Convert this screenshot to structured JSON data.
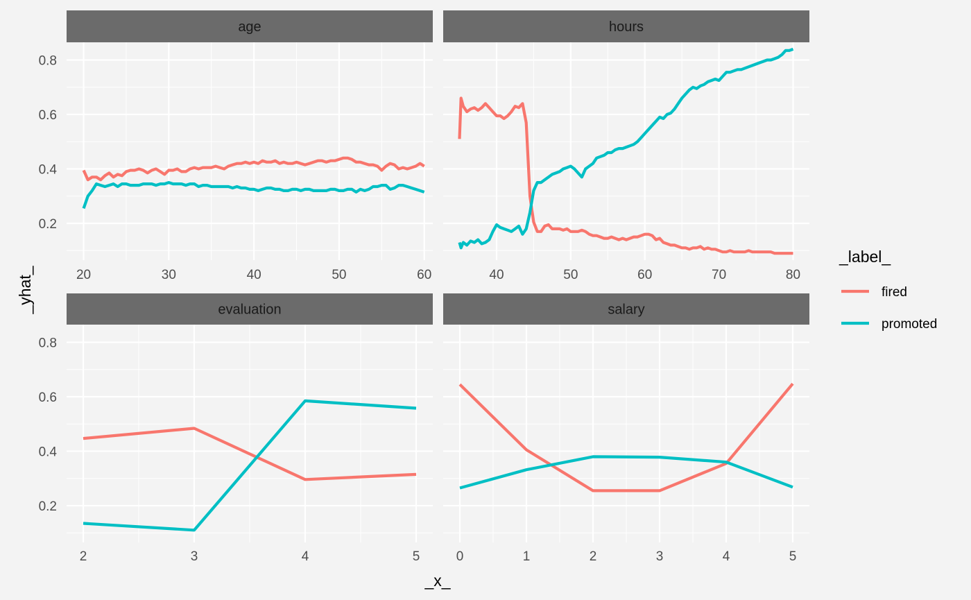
{
  "chart_data": {
    "type": "line",
    "xlabel": "_x_",
    "ylabel": "_yhat_",
    "ylim": [
      0.065,
      0.865
    ],
    "yticks": [
      0.2,
      0.4,
      0.6,
      0.8
    ],
    "grid": true,
    "shared_y": true,
    "legend": {
      "title": "_label_",
      "position": "right",
      "entries": [
        {
          "name": "fired",
          "color": "#F8766D"
        },
        {
          "name": "promoted",
          "color": "#00BFC4"
        }
      ]
    },
    "panels": [
      {
        "title": "age",
        "xlim": [
          18,
          61
        ],
        "xticks": [
          20,
          30,
          40,
          50,
          60
        ],
        "series": [
          {
            "name": "fired",
            "color": "#F8766D",
            "x": [
              20,
              20.5,
              21,
              21.5,
              22,
              22.5,
              23,
              23.5,
              24,
              24.5,
              25,
              25.5,
              26,
              26.5,
              27,
              27.5,
              28,
              28.5,
              29,
              29.5,
              30,
              30.5,
              31,
              31.5,
              32,
              32.5,
              33,
              33.5,
              34,
              34.5,
              35,
              35.5,
              36,
              36.5,
              37,
              37.5,
              38,
              38.5,
              39,
              39.5,
              40,
              40.5,
              41,
              41.5,
              42,
              42.5,
              43,
              43.5,
              44,
              44.5,
              45,
              45.5,
              46,
              46.5,
              47,
              47.5,
              48,
              48.5,
              49,
              49.5,
              50,
              50.5,
              51,
              51.5,
              52,
              52.5,
              53,
              53.5,
              54,
              54.5,
              55,
              55.5,
              56,
              56.5,
              57,
              57.5,
              58,
              58.5,
              59,
              59.5,
              60
            ],
            "y": [
              0.395,
              0.36,
              0.37,
              0.37,
              0.36,
              0.375,
              0.385,
              0.37,
              0.38,
              0.375,
              0.39,
              0.395,
              0.395,
              0.4,
              0.395,
              0.385,
              0.395,
              0.4,
              0.39,
              0.38,
              0.395,
              0.395,
              0.4,
              0.39,
              0.39,
              0.4,
              0.405,
              0.4,
              0.405,
              0.405,
              0.405,
              0.41,
              0.405,
              0.4,
              0.41,
              0.415,
              0.42,
              0.42,
              0.425,
              0.42,
              0.425,
              0.42,
              0.43,
              0.425,
              0.425,
              0.43,
              0.42,
              0.425,
              0.42,
              0.42,
              0.425,
              0.42,
              0.415,
              0.42,
              0.425,
              0.43,
              0.43,
              0.425,
              0.43,
              0.43,
              0.435,
              0.44,
              0.44,
              0.435,
              0.425,
              0.425,
              0.42,
              0.415,
              0.415,
              0.41,
              0.395,
              0.41,
              0.42,
              0.415,
              0.4,
              0.405,
              0.4,
              0.405,
              0.41,
              0.42,
              0.41
            ]
          },
          {
            "name": "promoted",
            "color": "#00BFC4",
            "x": [
              20,
              20.5,
              21,
              21.5,
              22,
              22.5,
              23,
              23.5,
              24,
              24.5,
              25,
              25.5,
              26,
              26.5,
              27,
              27.5,
              28,
              28.5,
              29,
              29.5,
              30,
              30.5,
              31,
              31.5,
              32,
              32.5,
              33,
              33.5,
              34,
              34.5,
              35,
              35.5,
              36,
              36.5,
              37,
              37.5,
              38,
              38.5,
              39,
              39.5,
              40,
              40.5,
              41,
              41.5,
              42,
              42.5,
              43,
              43.5,
              44,
              44.5,
              45,
              45.5,
              46,
              46.5,
              47,
              47.5,
              48,
              48.5,
              49,
              49.5,
              50,
              50.5,
              51,
              51.5,
              52,
              52.5,
              53,
              53.5,
              54,
              54.5,
              55,
              55.5,
              56,
              56.5,
              57,
              57.5,
              58,
              58.5,
              59,
              59.5,
              60
            ],
            "y": [
              0.255,
              0.3,
              0.32,
              0.345,
              0.34,
              0.335,
              0.34,
              0.345,
              0.335,
              0.345,
              0.345,
              0.34,
              0.34,
              0.34,
              0.345,
              0.345,
              0.345,
              0.34,
              0.345,
              0.345,
              0.35,
              0.345,
              0.345,
              0.345,
              0.34,
              0.345,
              0.345,
              0.335,
              0.34,
              0.34,
              0.335,
              0.335,
              0.335,
              0.335,
              0.335,
              0.33,
              0.335,
              0.33,
              0.33,
              0.325,
              0.325,
              0.32,
              0.325,
              0.33,
              0.33,
              0.325,
              0.325,
              0.32,
              0.32,
              0.325,
              0.325,
              0.32,
              0.325,
              0.325,
              0.32,
              0.32,
              0.32,
              0.32,
              0.325,
              0.325,
              0.32,
              0.32,
              0.325,
              0.325,
              0.315,
              0.325,
              0.32,
              0.325,
              0.335,
              0.335,
              0.34,
              0.34,
              0.325,
              0.33,
              0.34,
              0.34,
              0.335,
              0.33,
              0.325,
              0.32,
              0.315
            ]
          }
        ]
      },
      {
        "title": "hours",
        "xlim": [
          32.8,
          82.2
        ],
        "xticks": [
          40,
          50,
          60,
          70,
          80
        ],
        "series": [
          {
            "name": "fired",
            "color": "#F8766D",
            "x": [
              35,
              35.2,
              35.5,
              36,
              36.5,
              37,
              37.5,
              38,
              38.5,
              39,
              39.5,
              40,
              40.5,
              41,
              41.5,
              42,
              42.5,
              43,
              43.5,
              44,
              44.5,
              45,
              45.5,
              46,
              46.5,
              47,
              47.5,
              48,
              48.5,
              49,
              49.5,
              50,
              50.5,
              51,
              51.5,
              52,
              52.5,
              53,
              53.5,
              54,
              54.5,
              55,
              55.5,
              56,
              56.5,
              57,
              57.5,
              58,
              58.5,
              59,
              59.5,
              60,
              60.5,
              61,
              61.5,
              62,
              62.5,
              63,
              63.5,
              64,
              64.5,
              65,
              65.5,
              66,
              66.5,
              67,
              67.5,
              68,
              68.5,
              69,
              69.5,
              70,
              70.5,
              71,
              71.5,
              72,
              72.5,
              73,
              73.5,
              74,
              74.5,
              75,
              75.5,
              76,
              76.5,
              77,
              77.5,
              78,
              78.5,
              79,
              79.5,
              80
            ],
            "y": [
              0.51,
              0.66,
              0.63,
              0.61,
              0.62,
              0.625,
              0.615,
              0.625,
              0.64,
              0.625,
              0.61,
              0.595,
              0.595,
              0.585,
              0.595,
              0.61,
              0.63,
              0.625,
              0.64,
              0.57,
              0.3,
              0.205,
              0.17,
              0.17,
              0.19,
              0.195,
              0.18,
              0.18,
              0.18,
              0.175,
              0.18,
              0.17,
              0.17,
              0.17,
              0.175,
              0.17,
              0.16,
              0.155,
              0.155,
              0.15,
              0.145,
              0.145,
              0.15,
              0.145,
              0.14,
              0.145,
              0.14,
              0.145,
              0.15,
              0.15,
              0.155,
              0.16,
              0.16,
              0.155,
              0.14,
              0.145,
              0.13,
              0.125,
              0.12,
              0.12,
              0.115,
              0.11,
              0.11,
              0.105,
              0.11,
              0.11,
              0.115,
              0.105,
              0.11,
              0.105,
              0.105,
              0.1,
              0.095,
              0.095,
              0.1,
              0.095,
              0.095,
              0.095,
              0.095,
              0.1,
              0.095,
              0.095,
              0.095,
              0.095,
              0.095,
              0.095,
              0.09,
              0.09,
              0.09,
              0.09,
              0.09,
              0.09
            ]
          },
          {
            "name": "promoted",
            "color": "#00BFC4",
            "x": [
              35,
              35.2,
              35.5,
              36,
              36.5,
              37,
              37.5,
              38,
              38.5,
              39,
              39.5,
              40,
              40.5,
              41,
              41.5,
              42,
              42.5,
              43,
              43.5,
              44,
              44.5,
              45,
              45.5,
              46,
              46.5,
              47,
              47.5,
              48,
              48.5,
              49,
              49.5,
              50,
              50.5,
              51,
              51.5,
              52,
              52.5,
              53,
              53.5,
              54,
              54.5,
              55,
              55.5,
              56,
              56.5,
              57,
              57.5,
              58,
              58.5,
              59,
              59.5,
              60,
              60.5,
              61,
              61.5,
              62,
              62.5,
              63,
              63.5,
              64,
              64.5,
              65,
              65.5,
              66,
              66.5,
              67,
              67.5,
              68,
              68.5,
              69,
              69.5,
              70,
              70.5,
              71,
              71.5,
              72,
              72.5,
              73,
              73.5,
              74,
              74.5,
              75,
              75.5,
              76,
              76.5,
              77,
              77.5,
              78,
              78.5,
              79,
              79.5,
              80
            ],
            "y": [
              0.13,
              0.11,
              0.13,
              0.12,
              0.135,
              0.13,
              0.14,
              0.125,
              0.13,
              0.14,
              0.17,
              0.195,
              0.185,
              0.18,
              0.175,
              0.17,
              0.18,
              0.19,
              0.16,
              0.18,
              0.24,
              0.32,
              0.35,
              0.35,
              0.36,
              0.37,
              0.38,
              0.385,
              0.39,
              0.4,
              0.405,
              0.41,
              0.4,
              0.385,
              0.37,
              0.4,
              0.41,
              0.42,
              0.44,
              0.445,
              0.45,
              0.46,
              0.46,
              0.47,
              0.475,
              0.475,
              0.48,
              0.485,
              0.49,
              0.5,
              0.515,
              0.53,
              0.545,
              0.56,
              0.575,
              0.59,
              0.585,
              0.6,
              0.605,
              0.62,
              0.64,
              0.66,
              0.675,
              0.69,
              0.7,
              0.695,
              0.705,
              0.71,
              0.72,
              0.725,
              0.73,
              0.725,
              0.74,
              0.755,
              0.755,
              0.76,
              0.765,
              0.765,
              0.77,
              0.775,
              0.78,
              0.785,
              0.79,
              0.795,
              0.8,
              0.8,
              0.805,
              0.81,
              0.82,
              0.835,
              0.835,
              0.84
            ]
          }
        ]
      },
      {
        "title": "evaluation",
        "xlim": [
          1.85,
          5.15
        ],
        "xticks": [
          2,
          3,
          4,
          5
        ],
        "series": [
          {
            "name": "fired",
            "color": "#F8766D",
            "x": [
              2,
              3,
              4,
              5
            ],
            "y": [
              0.447,
              0.484,
              0.296,
              0.315
            ]
          },
          {
            "name": "promoted",
            "color": "#00BFC4",
            "x": [
              2,
              3,
              4,
              5
            ],
            "y": [
              0.135,
              0.11,
              0.585,
              0.558
            ]
          }
        ]
      },
      {
        "title": "salary",
        "xlim": [
          -0.25,
          5.25
        ],
        "xticks": [
          0,
          1,
          2,
          3,
          4,
          5
        ],
        "series": [
          {
            "name": "fired",
            "color": "#F8766D",
            "x": [
              0,
              1,
              2,
              3,
              4,
              5
            ],
            "y": [
              0.645,
              0.405,
              0.255,
              0.255,
              0.355,
              0.648
            ]
          },
          {
            "name": "promoted",
            "color": "#00BFC4",
            "x": [
              0,
              1,
              2,
              3,
              4,
              5
            ],
            "y": [
              0.265,
              0.332,
              0.38,
              0.378,
              0.36,
              0.268
            ]
          }
        ]
      }
    ]
  }
}
